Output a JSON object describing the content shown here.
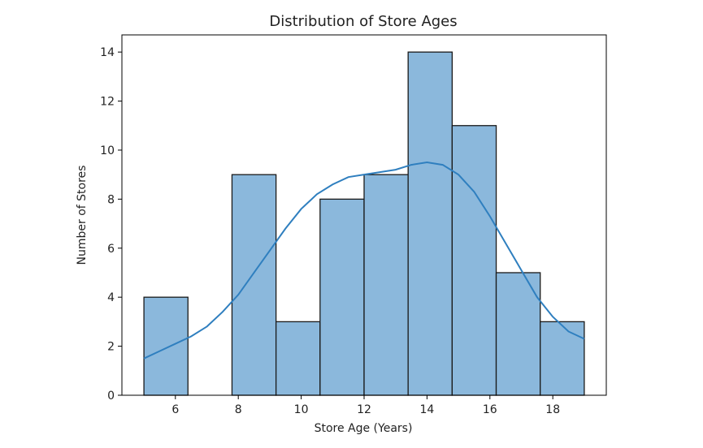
{
  "chart_data": {
    "type": "bar",
    "subtype": "histogram",
    "title": "Distribution of Store Ages",
    "xlabel": "Store Age (Years)",
    "ylabel": "Number of Stores",
    "xlim": [
      4.3,
      19.7
    ],
    "ylim": [
      0,
      14.7
    ],
    "bin_edges": [
      5.0,
      6.4,
      7.8,
      9.2,
      10.6,
      12.0,
      13.4,
      14.8,
      16.2,
      17.6,
      19.0
    ],
    "values": [
      4,
      0,
      9,
      3,
      8,
      9,
      14,
      11,
      5,
      3
    ],
    "x_ticks": [
      6,
      8,
      10,
      12,
      14,
      16,
      18
    ],
    "y_ticks": [
      0,
      2,
      4,
      6,
      8,
      10,
      12,
      14
    ],
    "grid": false,
    "bar_fill": "#8bb8dc",
    "bar_edge": "#1a1a1a",
    "kde": {
      "color": "#2f7fbf",
      "x": [
        5.0,
        5.5,
        6.0,
        6.5,
        7.0,
        7.5,
        8.0,
        8.5,
        9.0,
        9.5,
        10.0,
        10.5,
        11.0,
        11.5,
        12.0,
        12.5,
        13.0,
        13.5,
        14.0,
        14.5,
        15.0,
        15.5,
        16.0,
        16.5,
        17.0,
        17.5,
        18.0,
        18.5,
        19.0
      ],
      "y": [
        1.5,
        1.8,
        2.1,
        2.4,
        2.8,
        3.4,
        4.1,
        5.0,
        5.9,
        6.8,
        7.6,
        8.2,
        8.6,
        8.9,
        9.0,
        9.1,
        9.2,
        9.4,
        9.5,
        9.4,
        9.0,
        8.3,
        7.3,
        6.2,
        5.1,
        4.0,
        3.2,
        2.6,
        2.3
      ]
    }
  }
}
